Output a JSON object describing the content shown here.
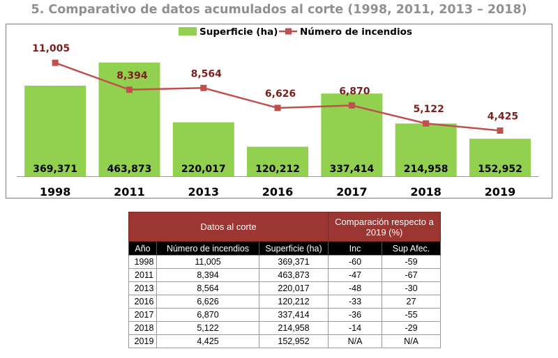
{
  "title": "5. Comparativo de datos acumulados  al corte (1998, 2011, 2013 – 2018)",
  "chart_data": {
    "type": "bar+line",
    "categories": [
      "1998",
      "2011",
      "2013",
      "2016",
      "2017",
      "2018",
      "2019"
    ],
    "series": [
      {
        "name": "Superficie (ha)",
        "type": "bar",
        "color": "#92d050",
        "values": [
          369371,
          463873,
          220017,
          120212,
          337414,
          214958,
          152952
        ],
        "labels": [
          "369,371",
          "463,873",
          "220,017",
          "120,212",
          "337,414",
          "214,958",
          "152,952"
        ]
      },
      {
        "name": "Número de incendios",
        "type": "line",
        "color": "#c0504d",
        "values": [
          11005,
          8394,
          8564,
          6626,
          6870,
          5122,
          4425
        ],
        "labels": [
          "11,005",
          "8,394",
          "8,564",
          "6,626",
          "6,870",
          "5,122",
          "4,425"
        ]
      }
    ],
    "bar_axis": {
      "ylim": [
        0,
        520000
      ]
    },
    "line_axis": {
      "ylim": [
        0,
        14800
      ]
    },
    "legend": "top-center",
    "grid": false
  },
  "table": {
    "group_header_1": "Datos al corte",
    "group_header_2": "Comparación respecto a 2019 (%)",
    "columns": [
      "Año",
      "Número de incendios",
      "Superficie (ha)",
      "Inc",
      "Sup Afec."
    ],
    "rows": [
      [
        "1998",
        "11,005",
        "369,371",
        "-60",
        "-59"
      ],
      [
        "2011",
        "8,394",
        "463,873",
        "-47",
        "-67"
      ],
      [
        "2013",
        "8,564",
        "220,017",
        "-48",
        "-30"
      ],
      [
        "2016",
        "6,626",
        "120,212",
        "-33",
        "27"
      ],
      [
        "2017",
        "6,870",
        "337,414",
        "-36",
        "-55"
      ],
      [
        "2018",
        "5,122",
        "214,958",
        "-14",
        "-29"
      ],
      [
        "2019",
        "4,425",
        "152,952",
        "N/A",
        "N/A"
      ]
    ]
  },
  "colors": {
    "bar": "#92d050",
    "line": "#c0504d",
    "line_label": "#7b1f1d",
    "table_header": "#9c3632",
    "title": "#909090"
  }
}
